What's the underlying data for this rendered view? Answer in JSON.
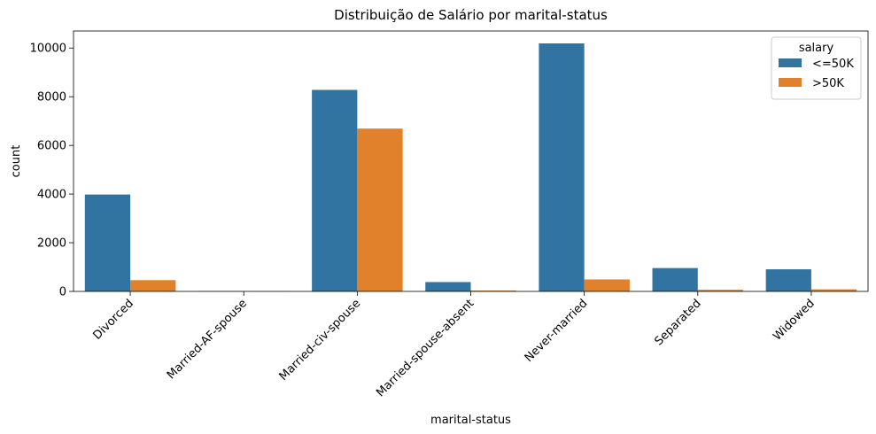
{
  "chart_data": {
    "type": "bar",
    "title": "Distribuição de Salário por marital-status",
    "xlabel": "marital-status",
    "ylabel": "count",
    "categories": [
      "Divorced",
      "Married-AF-spouse",
      "Married-civ-spouse",
      "Married-spouse-absent",
      "Never-married",
      "Separated",
      "Widowed"
    ],
    "series": [
      {
        "name": "<=50K",
        "color": "#3274a1",
        "values": [
          3980,
          13,
          8280,
          384,
          10190,
          959,
          908
        ]
      },
      {
        "name": ">50K",
        "color": "#e1812c",
        "values": [
          463,
          10,
          6690,
          34,
          491,
          66,
          85
        ]
      }
    ],
    "ylim": [
      0,
      10700
    ],
    "yticks": [
      0,
      2000,
      4000,
      6000,
      8000,
      10000
    ],
    "legend": {
      "title": "salary",
      "placement": "top-right"
    },
    "grid": false
  }
}
